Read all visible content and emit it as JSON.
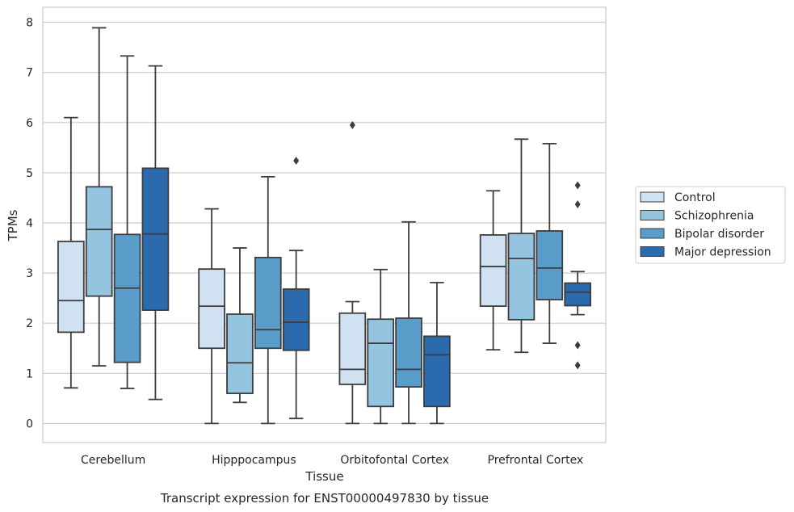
{
  "caption": "Transcript expression for ENST00000497830 by tissue",
  "chart_data": {
    "type": "box",
    "title": "",
    "xlabel": "Tissue",
    "ylabel": "TPMs",
    "ylim": [
      -0.38,
      8.3
    ],
    "yticks": [
      0,
      1,
      2,
      3,
      4,
      5,
      6,
      7,
      8
    ],
    "grid": "horizontal",
    "legend_position": "right",
    "categories": [
      "Cerebellum",
      "Hipppocampus",
      "Orbitofontal Cortex",
      "Prefrontal Cortex"
    ],
    "series": [
      {
        "name": "Control",
        "color": "#d0e1f2",
        "boxes": [
          {
            "whisker_low": 0.71,
            "q1": 1.82,
            "median": 2.45,
            "q3": 3.63,
            "whisker_high": 6.1,
            "outliers": []
          },
          {
            "whisker_low": 0.0,
            "q1": 1.5,
            "median": 2.34,
            "q3": 3.08,
            "whisker_high": 4.28,
            "outliers": []
          },
          {
            "whisker_low": 0.0,
            "q1": 0.78,
            "median": 1.08,
            "q3": 2.2,
            "whisker_high": 2.43,
            "outliers": [
              5.95
            ]
          },
          {
            "whisker_low": 1.47,
            "q1": 2.34,
            "median": 3.13,
            "q3": 3.76,
            "whisker_high": 4.64,
            "outliers": []
          }
        ]
      },
      {
        "name": "Schizophrenia",
        "color": "#94c4df",
        "boxes": [
          {
            "whisker_low": 1.15,
            "q1": 2.54,
            "median": 3.87,
            "q3": 4.72,
            "whisker_high": 7.89,
            "outliers": []
          },
          {
            "whisker_low": 0.42,
            "q1": 0.6,
            "median": 1.21,
            "q3": 2.18,
            "whisker_high": 3.5,
            "outliers": []
          },
          {
            "whisker_low": 0.0,
            "q1": 0.34,
            "median": 1.6,
            "q3": 2.08,
            "whisker_high": 3.07,
            "outliers": []
          },
          {
            "whisker_low": 1.42,
            "q1": 2.07,
            "median": 3.29,
            "q3": 3.79,
            "whisker_high": 5.67,
            "outliers": []
          }
        ]
      },
      {
        "name": "Bipolar disorder",
        "color": "#5a9dcb",
        "boxes": [
          {
            "whisker_low": 0.7,
            "q1": 1.22,
            "median": 2.7,
            "q3": 3.77,
            "whisker_high": 7.33,
            "outliers": []
          },
          {
            "whisker_low": 0.0,
            "q1": 1.5,
            "median": 1.87,
            "q3": 3.31,
            "whisker_high": 4.92,
            "outliers": []
          },
          {
            "whisker_low": 0.0,
            "q1": 0.73,
            "median": 1.08,
            "q3": 2.1,
            "whisker_high": 4.02,
            "outliers": []
          },
          {
            "whisker_low": 1.6,
            "q1": 2.47,
            "median": 3.1,
            "q3": 3.84,
            "whisker_high": 5.58,
            "outliers": []
          }
        ]
      },
      {
        "name": "Major depression",
        "color": "#2a6aad",
        "boxes": [
          {
            "whisker_low": 0.48,
            "q1": 2.26,
            "median": 3.78,
            "q3": 5.09,
            "whisker_high": 7.13,
            "outliers": []
          },
          {
            "whisker_low": 0.1,
            "q1": 1.46,
            "median": 2.02,
            "q3": 2.68,
            "whisker_high": 3.45,
            "outliers": [
              5.24
            ]
          },
          {
            "whisker_low": 0.0,
            "q1": 0.34,
            "median": 1.37,
            "q3": 1.74,
            "whisker_high": 2.81,
            "outliers": []
          },
          {
            "whisker_low": 2.17,
            "q1": 2.35,
            "median": 2.62,
            "q3": 2.8,
            "whisker_high": 3.03,
            "outliers": [
              4.75,
              4.37,
              1.56,
              1.16
            ]
          }
        ]
      }
    ]
  }
}
